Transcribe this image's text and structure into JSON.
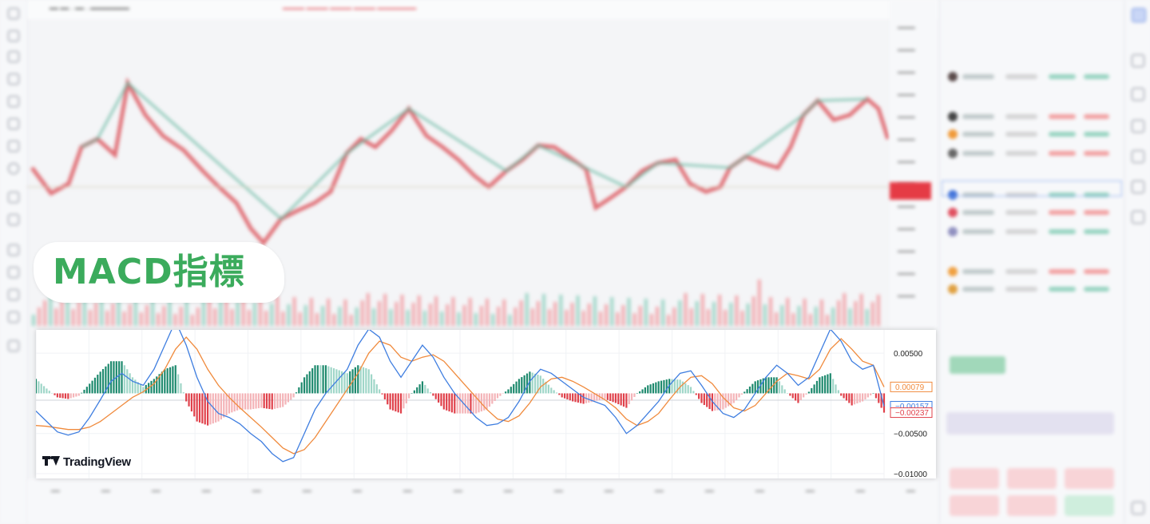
{
  "title": "MACD指標",
  "brand": {
    "name": "TradingView"
  },
  "colors": {
    "macd_line": "#3f7ee0",
    "signal_line": "#f08a3c",
    "hist_pos_strong": "#1e8a6e",
    "hist_pos_weak": "#9fd6c8",
    "hist_neg_strong": "#e0404a",
    "hist_neg_weak": "#f4b4b8",
    "title_green": "#3bab5c"
  },
  "chart_data": {
    "type": "line",
    "ylim": [
      -0.01,
      0.008
    ],
    "y_ticks": [
      0.005,
      -0.005,
      -0.01
    ],
    "y_tick_labels": [
      "0.00500",
      "−0.00500",
      "−0.01000"
    ],
    "grid": true,
    "legend": "none",
    "x_count": 80,
    "series": [
      {
        "role": "macd",
        "values": [
          -0.0022,
          -0.0035,
          -0.0048,
          -0.0052,
          -0.0048,
          -0.003,
          -0.0008,
          0.0015,
          0.0025,
          0.0015,
          0.001,
          0.003,
          0.006,
          0.009,
          0.006,
          0.002,
          -0.001,
          -0.0025,
          -0.003,
          -0.0038,
          -0.005,
          -0.006,
          -0.0075,
          -0.0085,
          -0.008,
          -0.005,
          -0.002,
          0.0,
          0.0015,
          0.003,
          0.006,
          0.008,
          0.007,
          0.004,
          0.002,
          0.004,
          0.006,
          0.0045,
          0.002,
          0.0,
          -0.0015,
          -0.003,
          -0.004,
          -0.0038,
          -0.003,
          -0.001,
          0.0015,
          0.003,
          0.0025,
          0.0015,
          0.0005,
          -0.0005,
          -0.001,
          -0.0015,
          -0.003,
          -0.005,
          -0.004,
          -0.0025,
          -0.001,
          0.001,
          0.0025,
          0.0028,
          0.001,
          -0.001,
          -0.0025,
          -0.003,
          -0.002,
          0.0,
          0.002,
          0.0035,
          0.0025,
          0.001,
          0.002,
          0.005,
          0.008,
          0.0065,
          0.004,
          0.003,
          0.0035,
          -0.0016
        ]
      },
      {
        "role": "signal",
        "values": [
          -0.004,
          -0.0041,
          -0.0043,
          -0.0045,
          -0.0045,
          -0.0042,
          -0.0035,
          -0.0025,
          -0.0015,
          -0.0005,
          0.0002,
          0.0012,
          0.003,
          0.0055,
          0.007,
          0.0055,
          0.003,
          0.001,
          -0.0005,
          -0.0018,
          -0.003,
          -0.0042,
          -0.0055,
          -0.0068,
          -0.0075,
          -0.007,
          -0.0055,
          -0.0035,
          -0.0015,
          0.0005,
          0.0025,
          0.005,
          0.0065,
          0.006,
          0.0045,
          0.004,
          0.0045,
          0.0048,
          0.004,
          0.0025,
          0.001,
          -0.0005,
          -0.002,
          -0.0032,
          -0.0035,
          -0.0028,
          -0.0012,
          0.0008,
          0.0018,
          0.002,
          0.0015,
          0.0008,
          0.0,
          -0.0008,
          -0.0018,
          -0.0032,
          -0.004,
          -0.0035,
          -0.0025,
          -0.0008,
          0.0008,
          0.002,
          0.0022,
          0.0012,
          -0.0005,
          -0.0018,
          -0.0022,
          -0.0015,
          0.0,
          0.0015,
          0.0025,
          0.0022,
          0.0018,
          0.003,
          0.0055,
          0.0068,
          0.0055,
          0.004,
          0.0035,
          0.0008
        ]
      }
    ],
    "last_values": {
      "signal": "0.00079",
      "macd": "−0.00157",
      "histogram": "−0.00237"
    }
  }
}
